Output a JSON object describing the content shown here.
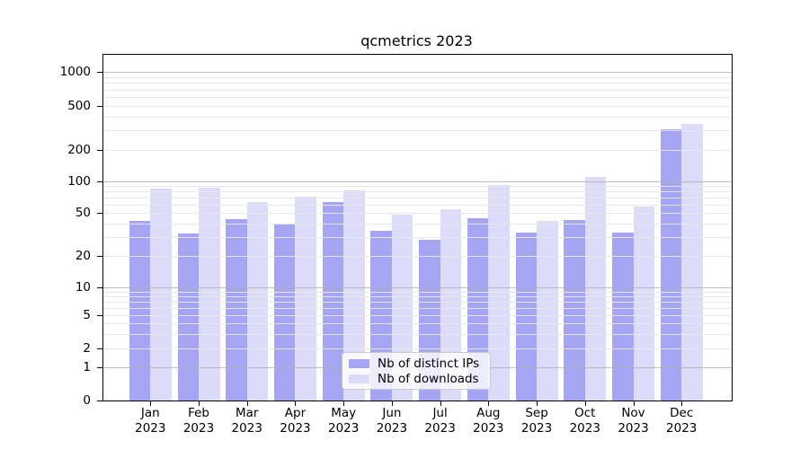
{
  "title": "qcmetrics 2023",
  "chart_data": {
    "type": "bar",
    "title": "qcmetrics 2023",
    "categories": [
      "Jan",
      "Feb",
      "Mar",
      "Apr",
      "May",
      "Jun",
      "Jul",
      "Aug",
      "Sep",
      "Oct",
      "Nov",
      "Dec"
    ],
    "category_year": "2023",
    "series": [
      {
        "name": "Nb of distinct IPs",
        "color": "#a5a5f4",
        "values": [
          42,
          32,
          44,
          40,
          63,
          34,
          28,
          45,
          33,
          43,
          33,
          310
        ]
      },
      {
        "name": "Nb of downloads",
        "color": "#dcdcfa",
        "values": [
          85,
          87,
          63,
          72,
          82,
          48,
          54,
          92,
          42,
          110,
          58,
          345
        ]
      }
    ],
    "ylabel": "",
    "xlabel": "",
    "yscale": "symlog",
    "ylim": [
      0,
      1400
    ],
    "yticks": [
      0,
      1,
      2,
      5,
      10,
      20,
      50,
      100,
      200,
      500,
      1000
    ],
    "grid": true,
    "legend_position": "lower center"
  }
}
